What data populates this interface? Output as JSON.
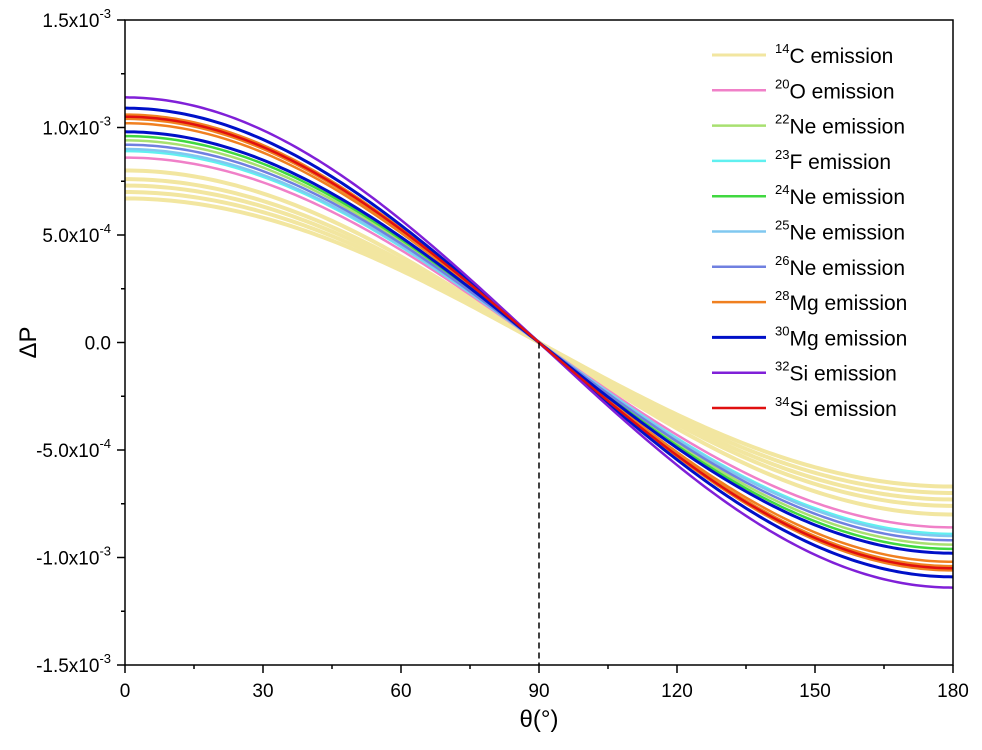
{
  "chart_data": {
    "type": "line",
    "xlabel": "θ(°)",
    "ylabel": "ΔP",
    "xlim": [
      0,
      180
    ],
    "ylim": [
      -0.0015,
      0.0015
    ],
    "x_ticks": [
      0,
      30,
      60,
      90,
      120,
      150,
      180
    ],
    "x_tick_labels": [
      "0",
      "30",
      "60",
      "90",
      "120",
      "150",
      "180"
    ],
    "y_ticks": [
      -0.0015,
      -0.001,
      -0.0005,
      0,
      0.0005,
      0.001,
      0.0015
    ],
    "y_tick_labels": [
      {
        "mantissa": "-1.5x10",
        "exp": "-3"
      },
      {
        "mantissa": "-1.0x10",
        "exp": "-3"
      },
      {
        "mantissa": "-5.0x10",
        "exp": "-4"
      },
      {
        "mantissa": "0.0",
        "exp": ""
      },
      {
        "mantissa": "5.0x10",
        "exp": "-4"
      },
      {
        "mantissa": "1.0x10",
        "exp": "-3"
      },
      {
        "mantissa": "1.5x10",
        "exp": "-3"
      }
    ],
    "grid": false,
    "legend_position": "top-right",
    "reference_line": {
      "x": 90,
      "style": "dashed"
    },
    "curve_form": "amplitude * cos(theta)",
    "series": [
      {
        "name": "C emission",
        "mass": "14",
        "color": "#F2E6A0",
        "width": 4,
        "amplitudes": [
          0.00067,
          0.0007,
          0.00073,
          0.00076,
          0.0008
        ]
      },
      {
        "name": "O emission",
        "mass": "20",
        "color": "#F080C8",
        "width": 2.5,
        "amplitudes": [
          0.00086
        ]
      },
      {
        "name": "Ne emission",
        "mass": "22",
        "color": "#A8E070",
        "width": 2.5,
        "amplitudes": [
          0.00094
        ]
      },
      {
        "name": "F emission",
        "mass": "23",
        "color": "#60F0F0",
        "width": 2.5,
        "amplitudes": [
          0.00089
        ]
      },
      {
        "name": "Ne emission",
        "mass": "24",
        "color": "#40D840",
        "width": 2.5,
        "amplitudes": [
          0.00096
        ]
      },
      {
        "name": "Ne emission",
        "mass": "25",
        "color": "#80C8F0",
        "width": 2.5,
        "amplitudes": [
          0.0009
        ]
      },
      {
        "name": "Ne emission",
        "mass": "26",
        "color": "#7080E0",
        "width": 2.5,
        "amplitudes": [
          0.00092
        ]
      },
      {
        "name": "Mg emission",
        "mass": "28",
        "color": "#F08020",
        "width": 2.5,
        "amplitudes": [
          0.00102,
          0.00104,
          0.00106
        ]
      },
      {
        "name": "Mg emission",
        "mass": "30",
        "color": "#0010C8",
        "width": 3,
        "amplitudes": [
          0.00098,
          0.00109
        ]
      },
      {
        "name": "Si emission",
        "mass": "32",
        "color": "#8020D8",
        "width": 2.5,
        "amplitudes": [
          0.00114
        ]
      },
      {
        "name": "Si emission",
        "mass": "34",
        "color": "#E01010",
        "width": 2.5,
        "amplitudes": [
          0.00105
        ]
      }
    ]
  }
}
